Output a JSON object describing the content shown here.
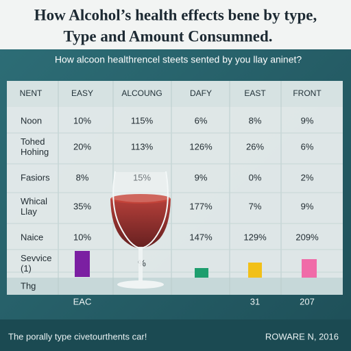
{
  "header": {
    "title": [
      "How Alcohol’s health effects bene by type,",
      "Type and Amount Consumned."
    ],
    "subtitle": "How alcoon healthrencel steets sented by you llay aninet?"
  },
  "table": {
    "columns": [
      "NENT",
      "EASY",
      "ALCOUNG",
      "DAFY",
      "EAST",
      "FRONT"
    ],
    "rows": [
      {
        "label": [
          "Noon"
        ],
        "cells": [
          "10%",
          "115%",
          "6%",
          "8%",
          "9%"
        ]
      },
      {
        "label": [
          "Tohed",
          "Hohing"
        ],
        "cells": [
          "20%",
          "113%",
          "126%",
          "26%",
          "6%"
        ]
      },
      {
        "label": [
          "Fasiors"
        ],
        "cells": [
          "8%",
          "15%",
          "9%",
          "0%",
          "2%"
        ]
      },
      {
        "label": [
          "Whical",
          "Llay"
        ],
        "cells": [
          "35%",
          null,
          "177%",
          "7%",
          "9%"
        ]
      },
      {
        "label": [
          "Naice"
        ],
        "cells": [
          "10%",
          null,
          "147%",
          "129%",
          "209%"
        ]
      },
      {
        "label": [
          "Sevvice",
          "(1)"
        ],
        "cells": [
          null,
          "%",
          null,
          null,
          null
        ]
      },
      {
        "label": [
          "Thg"
        ],
        "cells": [
          null,
          null,
          null,
          null,
          null
        ]
      }
    ],
    "bottom": [
      "EAC",
      null,
      null,
      "31",
      "207"
    ]
  },
  "footer": {
    "left": "The porally type civetourthents car!",
    "right": "ROWARE N, 2016"
  }
}
